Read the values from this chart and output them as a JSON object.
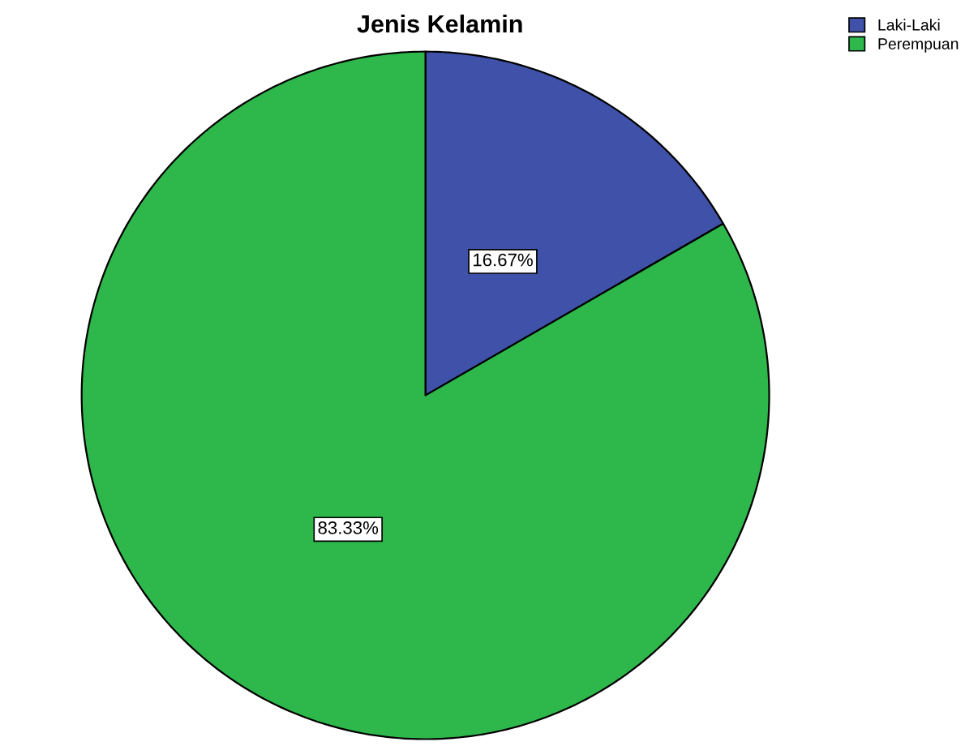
{
  "chart_data": {
    "type": "pie",
    "title": "Jenis Kelamin",
    "categories": [
      "Laki-Laki",
      "Perempuan"
    ],
    "values": [
      16.67,
      83.33
    ],
    "colors": [
      "#3f51a8",
      "#2eb84b"
    ],
    "value_labels": [
      "16.67%",
      "83.33%"
    ],
    "legend": "top right"
  }
}
